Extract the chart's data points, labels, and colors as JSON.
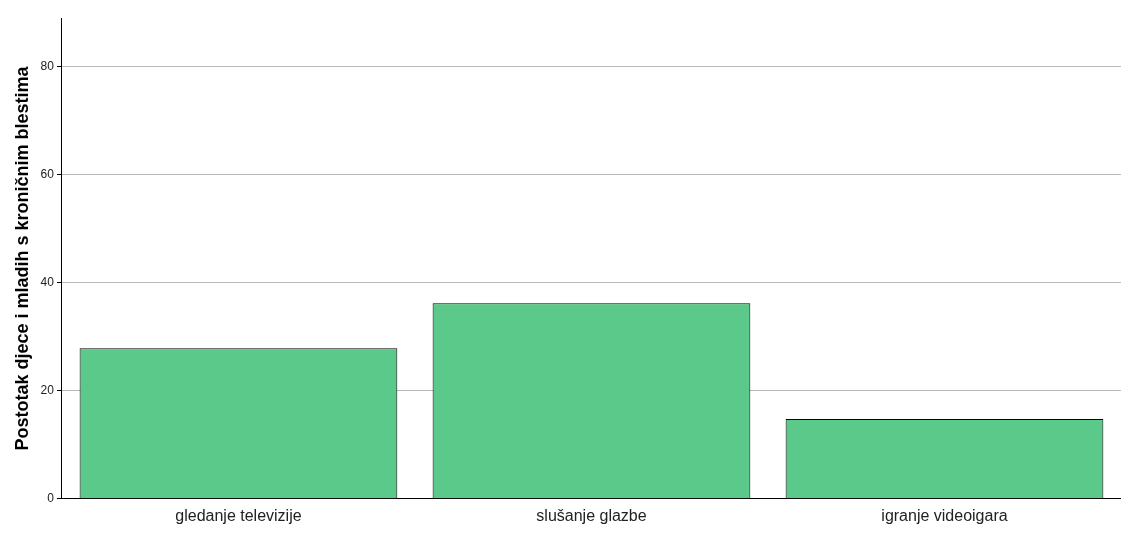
{
  "chart_data": {
    "type": "bar",
    "ylabel": "Postotak djece i mladih s kroničnim blestima",
    "categories": [
      "gledanje televizije",
      "slušanje glazbe",
      "igranje videoigara"
    ],
    "values": [
      27.9,
      36.2,
      14.8
    ],
    "color": "#5bc98a",
    "ylim": [
      0,
      89
    ],
    "yticks": [
      0,
      20,
      40,
      60,
      80
    ],
    "grid": "y"
  }
}
